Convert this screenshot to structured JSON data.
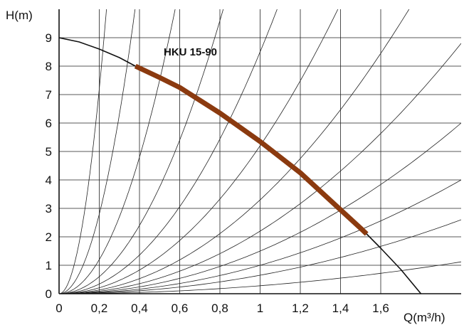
{
  "chart_data": {
    "type": "line",
    "title": "",
    "xlabel": "Q(m³/h)",
    "ylabel": "H(m)",
    "xlim": [
      0,
      2.0
    ],
    "ylim": [
      0,
      10
    ],
    "x_ticks": [
      {
        "value": 0,
        "label": "0"
      },
      {
        "value": 0.2,
        "label": "0,2"
      },
      {
        "value": 0.4,
        "label": "0,4"
      },
      {
        "value": 0.6,
        "label": "0,6"
      },
      {
        "value": 0.8,
        "label": "0,8"
      },
      {
        "value": 1.0,
        "label": "1"
      },
      {
        "value": 1.2,
        "label": "1,2"
      },
      {
        "value": 1.4,
        "label": "1,4"
      },
      {
        "value": 1.6,
        "label": "1,6"
      }
    ],
    "y_ticks": [
      {
        "value": 0,
        "label": "0"
      },
      {
        "value": 1,
        "label": "1"
      },
      {
        "value": 2,
        "label": "2"
      },
      {
        "value": 3,
        "label": "3"
      },
      {
        "value": 4,
        "label": "4"
      },
      {
        "value": 5,
        "label": "5"
      },
      {
        "value": 6,
        "label": "6"
      },
      {
        "value": 7,
        "label": "7"
      },
      {
        "value": 8,
        "label": "8"
      },
      {
        "value": 9,
        "label": "9"
      }
    ],
    "grid": true,
    "annotation": "HKU 15-90",
    "series": [
      {
        "x": [
          0,
          0.1,
          0.2,
          0.3,
          0.38,
          0.5,
          0.6,
          0.7,
          0.8,
          0.9,
          1.0,
          1.1,
          1.2,
          1.3,
          1.4,
          1.5,
          1.53,
          1.6,
          1.7,
          1.8
        ],
        "y": [
          9.0,
          8.85,
          8.6,
          8.3,
          8.0,
          7.6,
          7.25,
          6.8,
          6.35,
          5.85,
          5.35,
          4.8,
          4.25,
          3.6,
          2.95,
          2.3,
          2.1,
          1.6,
          0.85,
          0.0
        ],
        "color": "#111111"
      },
      {
        "x": [
          0.38,
          0.5,
          0.6,
          0.7,
          0.8,
          0.9,
          1.0,
          1.1,
          1.2,
          1.3,
          1.4,
          1.5,
          1.53
        ],
        "y": [
          8.0,
          7.6,
          7.25,
          6.8,
          6.35,
          5.85,
          5.35,
          4.8,
          4.25,
          3.6,
          2.95,
          2.3,
          2.1
        ],
        "color": "#8b3a0f"
      }
    ],
    "system_curve_coefficients": [
      180,
      70,
      30,
      15,
      8.5,
      5.2,
      3.3,
      2.2,
      1.5,
      1.0,
      0.65,
      0.28
    ],
    "colors": {
      "axis": "#111111",
      "grid": "#222222",
      "curve": "#111111",
      "operating_range": "#8b3a0f"
    }
  }
}
